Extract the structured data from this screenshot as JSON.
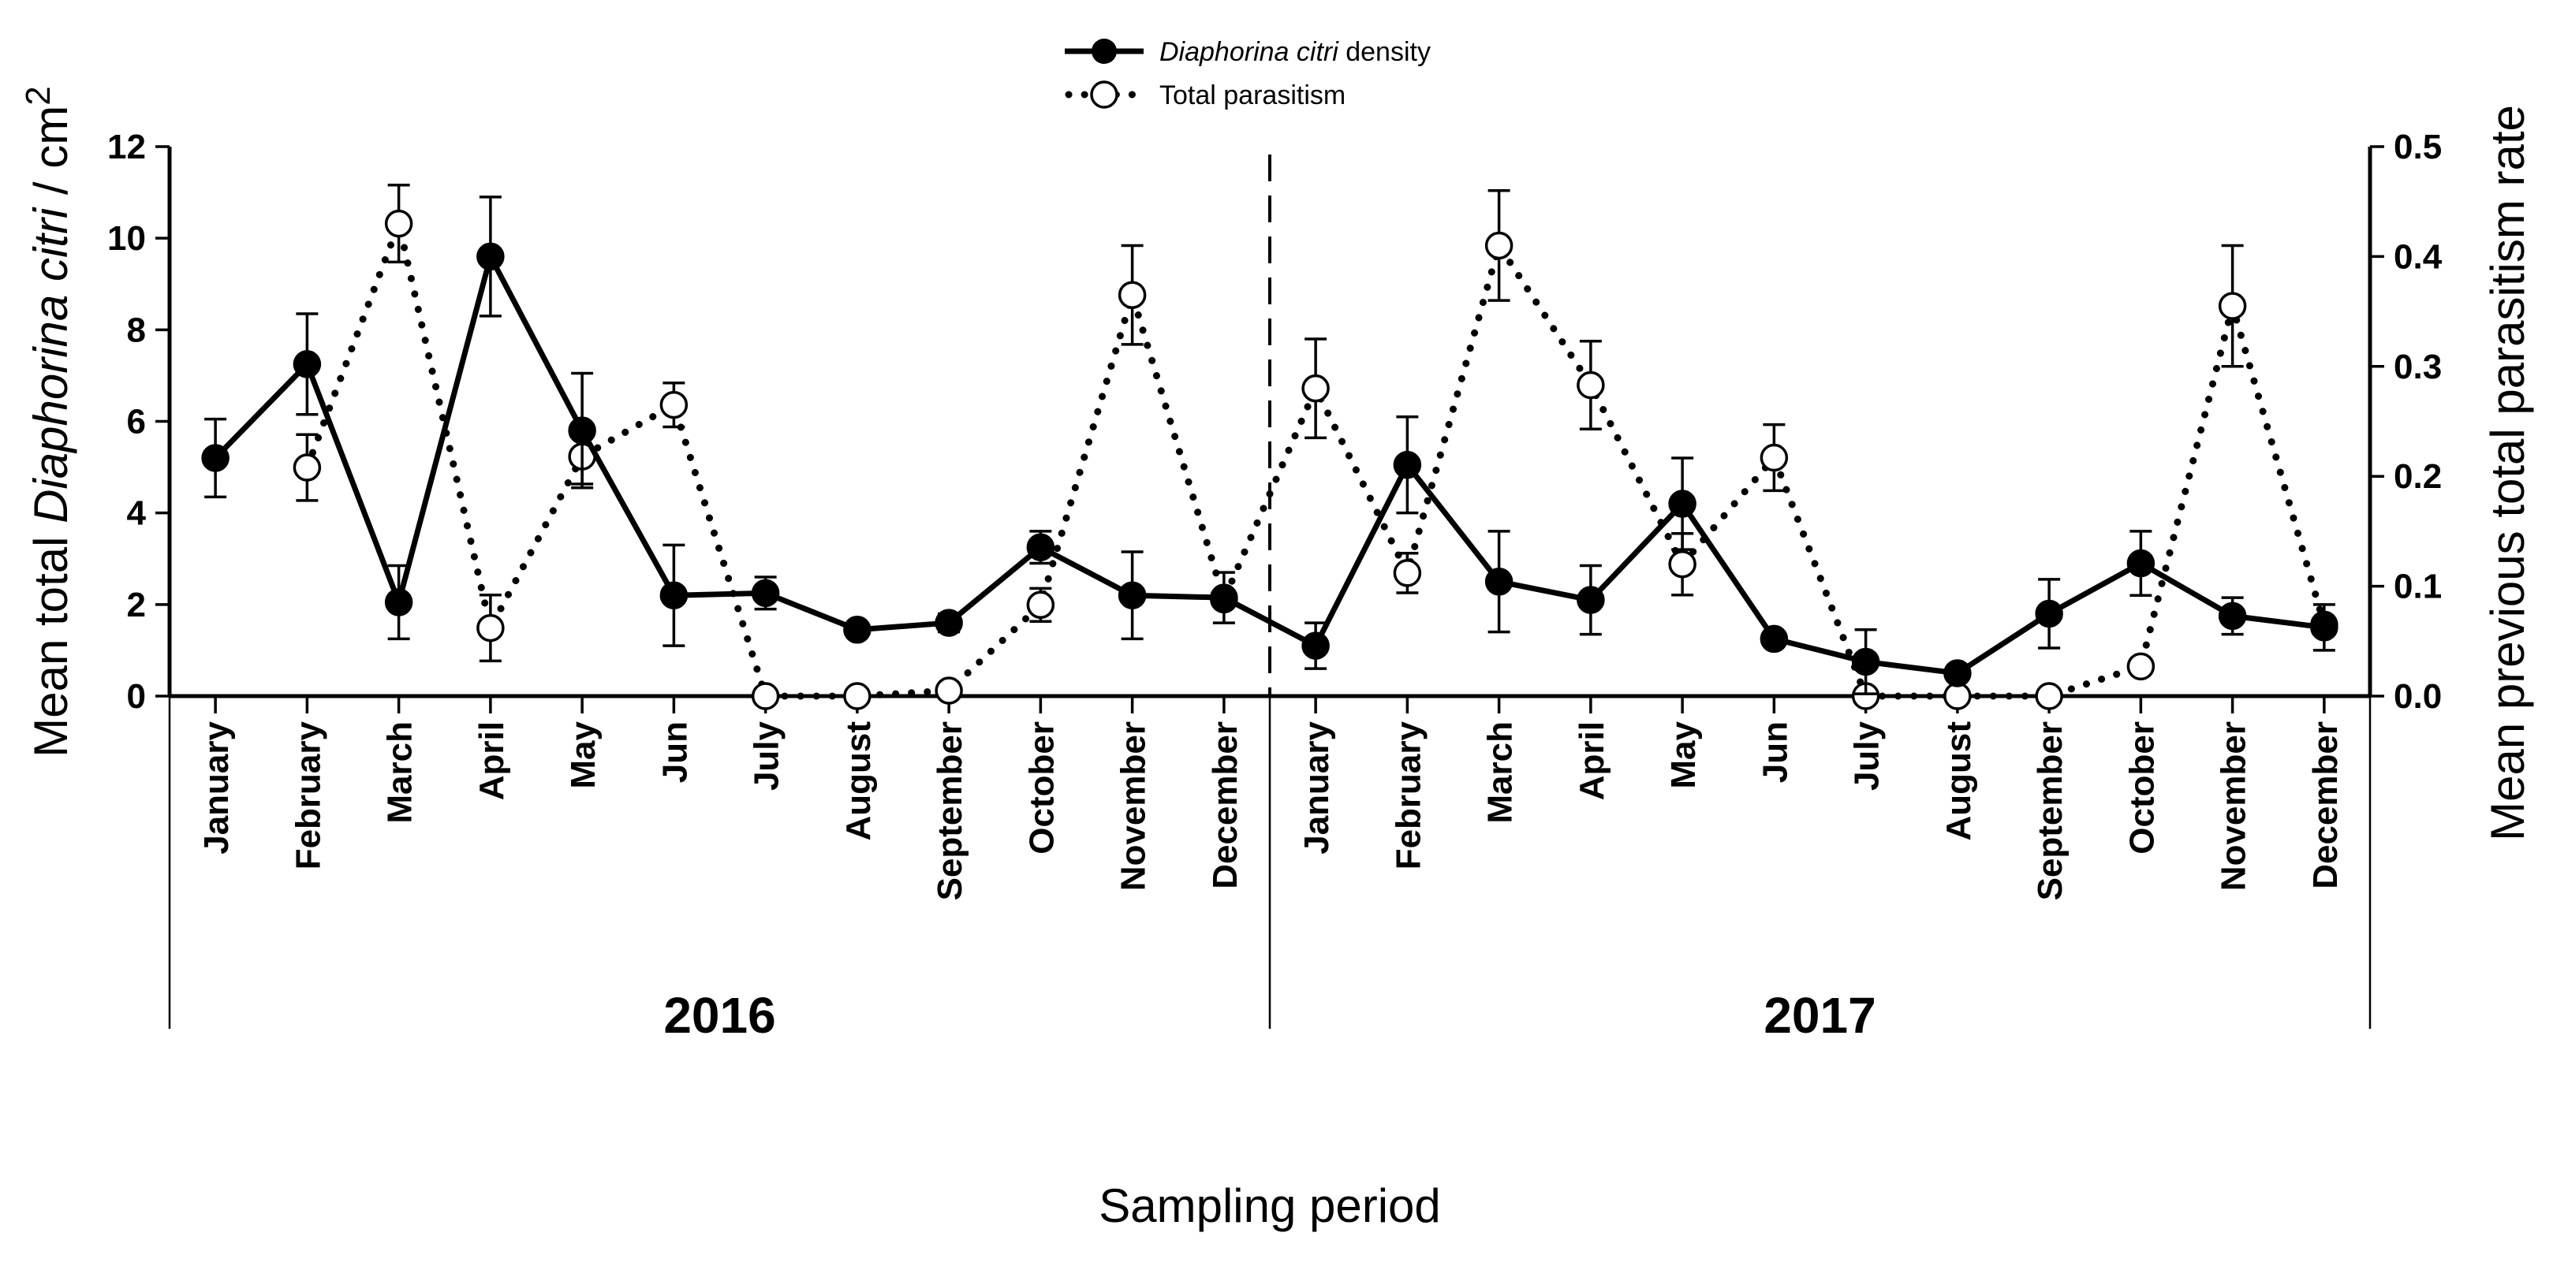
{
  "chart_data": {
    "type": "line",
    "categories": [
      "January",
      "February",
      "March",
      "April",
      "May",
      "Jun",
      "July",
      "August",
      "September",
      "October",
      "November",
      "December",
      "January",
      "February",
      "March",
      "April",
      "May",
      "Jun",
      "July",
      "August",
      "September",
      "October",
      "November",
      "December"
    ],
    "groups": [
      {
        "label": "2016",
        "start": 0,
        "end": 11
      },
      {
        "label": "2017",
        "start": 12,
        "end": 23
      }
    ],
    "xlabel": "Sampling period",
    "ylabel_left": {
      "pre": "Mean total ",
      "italic": "Diaphorina citri",
      "post": " / cm",
      "sup": "2"
    },
    "ylabel_right": "Mean previous total parasitism rate",
    "ylim_left": [
      0,
      12
    ],
    "ylim_right": [
      0,
      0.5
    ],
    "yticks_left": [
      "0",
      "2",
      "4",
      "6",
      "8",
      "10",
      "12"
    ],
    "yticks_right": [
      "0.0",
      "0.1",
      "0.2",
      "0.3",
      "0.4",
      "0.5"
    ],
    "divider_after_index": 11,
    "series": [
      {
        "name": "Diaphorina citri density",
        "legend_italic": "Diaphorina citri",
        "legend_rest": " density",
        "axis": "left",
        "marker": "filled-circle",
        "line": "solid",
        "values": [
          5.2,
          7.25,
          2.05,
          9.6,
          5.8,
          2.2,
          2.25,
          1.45,
          1.6,
          3.25,
          2.2,
          2.15,
          1.1,
          5.05,
          2.5,
          2.1,
          4.2,
          1.25,
          0.75,
          0.5,
          1.8,
          2.9,
          1.75,
          1.5
        ],
        "errors": [
          0.85,
          1.1,
          0.8,
          1.3,
          1.25,
          1.1,
          0.35,
          0.15,
          0.2,
          0.35,
          0.95,
          0.55,
          0.5,
          1.05,
          1.1,
          0.75,
          1.0,
          0.15,
          0.7,
          0.1,
          0.75,
          0.7,
          0.4,
          0.5
        ]
      },
      {
        "name": "Total parasitism",
        "axis": "right",
        "marker": "open-circle",
        "line": "dotted",
        "values": [
          null,
          0.208,
          0.43,
          0.062,
          0.218,
          0.265,
          0.0,
          0.0,
          0.005,
          0.083,
          0.365,
          0.088,
          0.28,
          0.112,
          0.41,
          0.283,
          0.12,
          0.217,
          0.0,
          0.0,
          0.0,
          0.027,
          0.355,
          0.065
        ],
        "errors": [
          null,
          0.03,
          0.035,
          0.03,
          0.025,
          0.02,
          0.0,
          0.0,
          0.005,
          0.015,
          0.045,
          0.0,
          0.045,
          0.018,
          0.05,
          0.04,
          0.028,
          0.03,
          0.0,
          0.0,
          0.0,
          0.0,
          0.055,
          0.0
        ]
      }
    ]
  }
}
